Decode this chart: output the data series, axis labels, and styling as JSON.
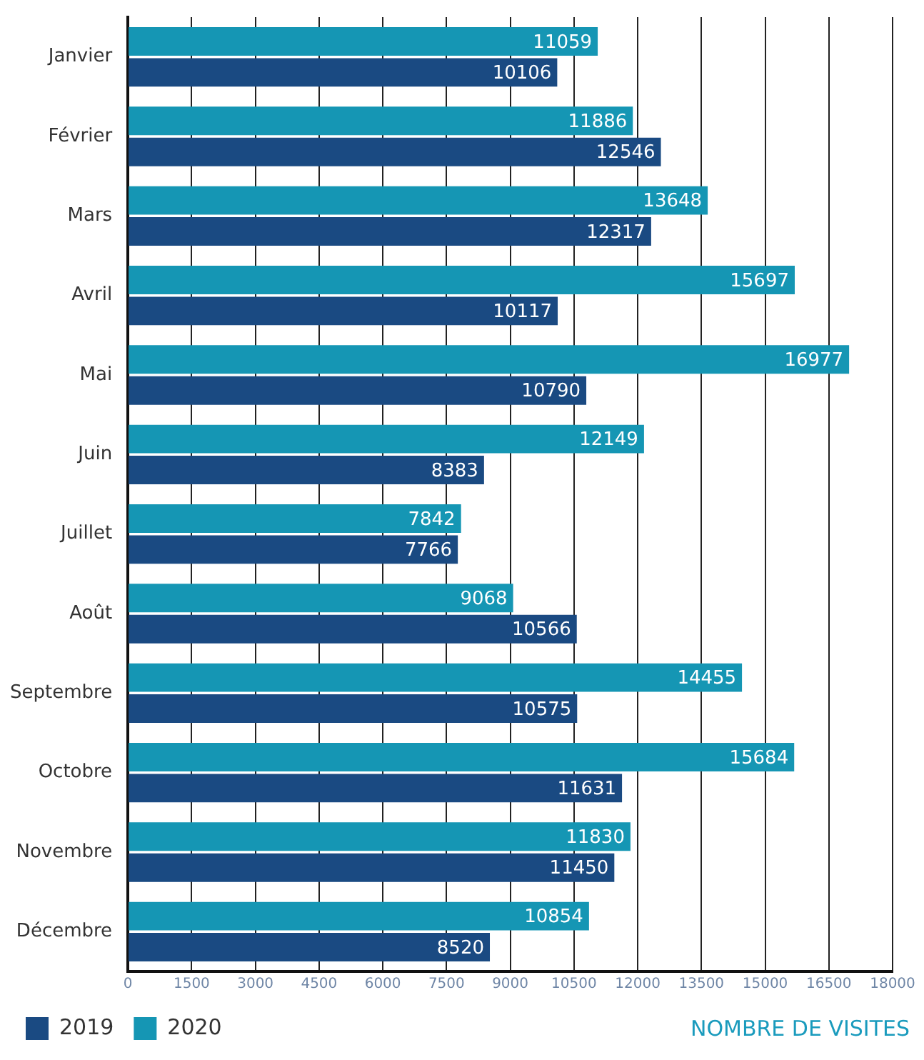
{
  "chart_data": {
    "type": "bar",
    "orientation": "horizontal",
    "xlabel": "NOMBRE DE VISITES",
    "categories": [
      "Janvier",
      "Février",
      "Mars",
      "Avril",
      "Mai",
      "Juin",
      "Juillet",
      "Août",
      "Septembre",
      "Octobre",
      "Novembre",
      "Décembre"
    ],
    "series": [
      {
        "name": "2019",
        "color": "#1a4a82",
        "values": [
          10106,
          12546,
          12317,
          10117,
          10790,
          8383,
          7766,
          10566,
          10575,
          11631,
          11450,
          8520
        ]
      },
      {
        "name": "2020",
        "color": "#1596b4",
        "values": [
          11059,
          11886,
          13648,
          15697,
          16977,
          12149,
          7842,
          9068,
          14455,
          15684,
          11830,
          10854
        ]
      }
    ],
    "xlim": [
      0,
      18000
    ],
    "xticks": [
      0,
      1500,
      3000,
      4500,
      6000,
      7500,
      9000,
      10500,
      12000,
      13500,
      15000,
      16500,
      18000
    ],
    "grid": "x",
    "legend": "bottom",
    "data_labels": true
  }
}
